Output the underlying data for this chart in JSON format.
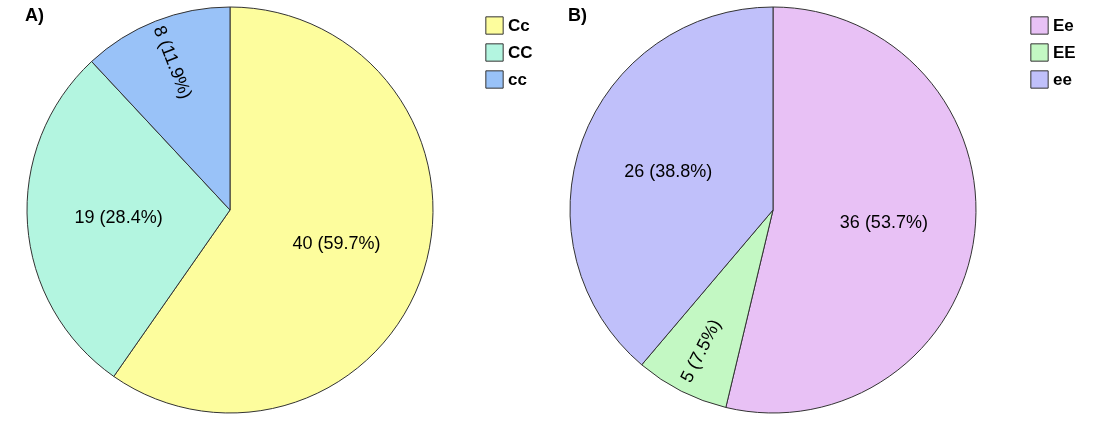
{
  "chart_data": [
    {
      "type": "pie",
      "title": "A)",
      "categories": [
        "Cc",
        "CC",
        "cc"
      ],
      "values": [
        40,
        19,
        8
      ],
      "colors": [
        "#fdfd9d",
        "#b3f5e0",
        "#99c2f8"
      ],
      "value_labels": [
        "40 (59.7%)",
        "19 (28.4%)",
        "8 (11.9%)"
      ],
      "legend": "top right"
    },
    {
      "type": "pie",
      "title": "B)",
      "categories": [
        "Ee",
        "EE",
        "ee"
      ],
      "values": [
        36,
        5,
        26
      ],
      "colors": [
        "#e8c1f5",
        "#c3f8c3",
        "#c0c0fa"
      ],
      "value_labels": [
        "36 (53.7%)",
        "5 (7.5%)",
        "26 (38.8%)"
      ],
      "legend": "top right"
    }
  ]
}
